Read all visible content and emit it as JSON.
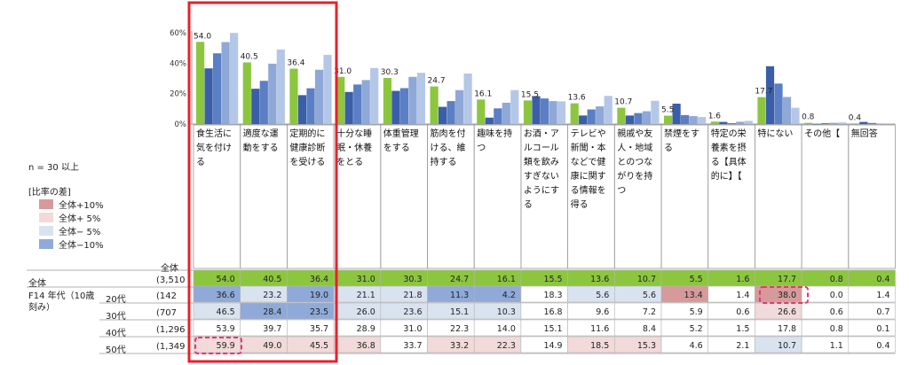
{
  "n_note": "n = 30 以上",
  "legend": {
    "title": "[比率の差]",
    "items": [
      {
        "label": "全体+10%",
        "color": "#d69a9a"
      },
      {
        "label": "全体+ 5%",
        "color": "#f2dada"
      },
      {
        "label": "全体− 5%",
        "color": "#d9e3f0"
      },
      {
        "label": "全体−10%",
        "color": "#8faad8"
      }
    ]
  },
  "table": {
    "header_total": "全体",
    "total_row_label": "全体",
    "group_label": "F14 年代（10歳刻み）",
    "rows": [
      {
        "label": "全体",
        "n": "(3,510"
      },
      {
        "label": "20代",
        "n": "(142"
      },
      {
        "label": "30代",
        "n": "(707"
      },
      {
        "label": "40代",
        "n": "(1,296"
      },
      {
        "label": "50代",
        "n": "(1,349"
      }
    ]
  },
  "chart_data": {
    "type": "bar",
    "ylim": [
      0,
      60
    ],
    "yticks": [
      "0%",
      "20%",
      "40%",
      "60%"
    ],
    "categories": [
      "食生活に気を付ける",
      "適度な運動をする",
      "定期的に健康診断を受ける",
      "十分な睡眠・休養をとる",
      "体重管理をする",
      "筋肉を付ける、維持する",
      "趣味を持つ",
      "お酒・アルコール類を飲みすぎないようにする",
      "テレビや新聞・本などで健康に関する情報を得る",
      "親戚や友人・地域とのつながりを持つ",
      "禁煙をする",
      "特定の栄養素を摂る【具体的に】【",
      "特にない",
      "その他【",
      "無回答"
    ],
    "series": [
      {
        "name": "全体",
        "color": "#8cc63f",
        "values": [
          54.0,
          40.5,
          36.4,
          31.0,
          30.3,
          24.7,
          16.1,
          15.5,
          13.6,
          10.7,
          5.5,
          1.6,
          17.7,
          0.8,
          0.4
        ]
      },
      {
        "name": "20代",
        "color": "#3a5ea8",
        "values": [
          36.6,
          23.2,
          19.0,
          21.1,
          21.8,
          11.3,
          4.2,
          18.3,
          5.6,
          5.6,
          13.4,
          1.4,
          38.0,
          0.0,
          1.4
        ]
      },
      {
        "name": "30代",
        "color": "#5b7fc4",
        "values": [
          46.5,
          28.4,
          23.5,
          26.0,
          23.6,
          15.1,
          10.3,
          16.8,
          9.6,
          7.2,
          5.9,
          0.6,
          26.6,
          0.6,
          0.7
        ]
      },
      {
        "name": "40代",
        "color": "#8ea8d8",
        "values": [
          53.9,
          39.7,
          35.7,
          28.9,
          31.0,
          22.3,
          14.0,
          15.1,
          11.6,
          8.4,
          5.2,
          1.5,
          17.8,
          0.8,
          0.1
        ]
      },
      {
        "name": "50代",
        "color": "#b4c7e7",
        "values": [
          59.9,
          49.0,
          45.5,
          36.8,
          33.7,
          33.2,
          22.3,
          14.9,
          18.5,
          15.3,
          4.6,
          2.1,
          10.7,
          1.1,
          0.4
        ]
      }
    ],
    "data_labels": [
      "54.0",
      "40.5",
      "36.4",
      "31.0",
      "30.3",
      "24.7",
      "16.1",
      "15.5",
      "13.6",
      "10.7",
      "5.5",
      "1.6",
      "17.7",
      "0.8",
      "0.4"
    ],
    "table_values": [
      [
        "54.0",
        "40.5",
        "36.4",
        "31.0",
        "30.3",
        "24.7",
        "16.1",
        "15.5",
        "13.6",
        "10.7",
        "5.5",
        "1.6",
        "17.7",
        "0.8",
        "0.4"
      ],
      [
        "36.6",
        "23.2",
        "19.0",
        "21.1",
        "21.8",
        "11.3",
        "4.2",
        "18.3",
        "5.6",
        "5.6",
        "13.4",
        "1.4",
        "38.0",
        "0.0",
        "1.4"
      ],
      [
        "46.5",
        "28.4",
        "23.5",
        "26.0",
        "23.6",
        "15.1",
        "10.3",
        "16.8",
        "9.6",
        "7.2",
        "5.9",
        "0.6",
        "26.6",
        "0.6",
        "0.7"
      ],
      [
        "53.9",
        "39.7",
        "35.7",
        "28.9",
        "31.0",
        "22.3",
        "14.0",
        "15.1",
        "11.6",
        "8.4",
        "5.2",
        "1.5",
        "17.8",
        "0.8",
        "0.1"
      ],
      [
        "59.9",
        "49.0",
        "45.5",
        "36.8",
        "33.7",
        "33.2",
        "22.3",
        "14.9",
        "18.5",
        "15.3",
        "4.6",
        "2.1",
        "10.7",
        "1.1",
        "0.4"
      ]
    ],
    "cell_colors": [
      [
        "green",
        "green",
        "green",
        "green",
        "green",
        "green",
        "green",
        "green",
        "green",
        "green",
        "green",
        "green",
        "green",
        "green",
        "green"
      ],
      [
        "blue10",
        "blue5",
        "blue10",
        "blue5",
        "blue5",
        "blue10",
        "blue10",
        "none",
        "blue5",
        "blue5",
        "red10",
        "none",
        "red10",
        "none",
        "none"
      ],
      [
        "blue5",
        "blue10",
        "blue10",
        "blue5",
        "blue5",
        "blue5",
        "blue5",
        "none",
        "none",
        "none",
        "none",
        "none",
        "red5",
        "none",
        "none"
      ],
      [
        "none",
        "none",
        "none",
        "none",
        "none",
        "none",
        "none",
        "none",
        "none",
        "none",
        "none",
        "none",
        "none",
        "none",
        "none"
      ],
      [
        "red5",
        "red5",
        "red5",
        "red5",
        "none",
        "red5",
        "red5",
        "none",
        "red5",
        "red5",
        "none",
        "none",
        "blue5",
        "none",
        "none"
      ]
    ],
    "highlights": {
      "box_color": "#e8202a",
      "dash_color": "#e8366f"
    }
  }
}
